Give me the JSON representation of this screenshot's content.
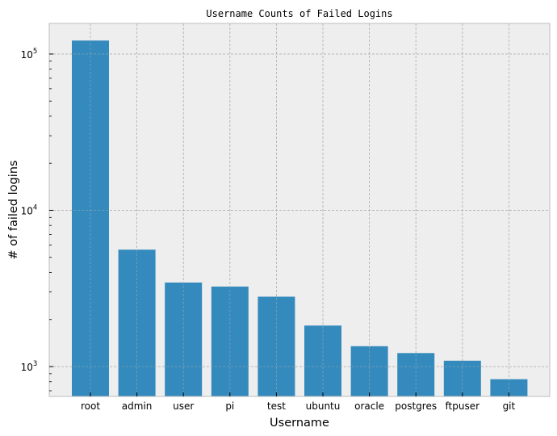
{
  "chart_data": {
    "type": "bar",
    "title": "Username Counts of Failed Logins",
    "xlabel": "Username",
    "ylabel": "# of failed logins",
    "yscale": "log",
    "ylim": [
      644,
      157000
    ],
    "categories": [
      "root",
      "admin",
      "user",
      "pi",
      "test",
      "ubuntu",
      "oracle",
      "postgres",
      "ftpuser",
      "git"
    ],
    "values": [
      122000,
      5600,
      3450,
      3250,
      2800,
      1830,
      1350,
      1220,
      1090,
      830
    ],
    "y_major_ticks": [
      {
        "value": 1000,
        "base": "10",
        "exp": "3"
      },
      {
        "value": 10000,
        "base": "10",
        "exp": "4"
      },
      {
        "value": 100000,
        "base": "10",
        "exp": "5"
      }
    ],
    "grid": true,
    "legend": null,
    "colors": {
      "bar": "#348ABD",
      "plot_background": "#EEEEEE",
      "grid": "#B2B2B2",
      "spine": "#BCBCBC",
      "figure_background": "#FFFFFF"
    }
  }
}
